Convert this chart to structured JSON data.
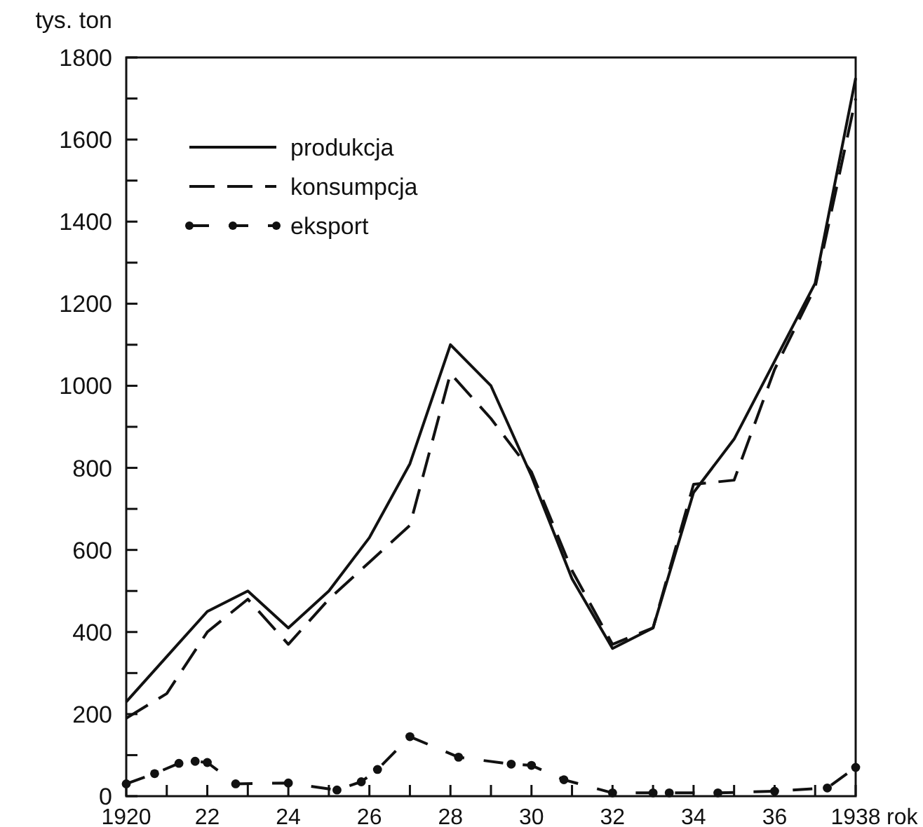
{
  "chart_data": {
    "type": "line",
    "ylabel": "tys. ton",
    "xlabel": "rok",
    "xlim": [
      1920,
      1938
    ],
    "ylim": [
      0,
      1800
    ],
    "xticks": [
      1920,
      {
        "value": 1921,
        "label": null
      },
      {
        "value": 1922,
        "label": "22"
      },
      {
        "value": 1923,
        "label": null
      },
      {
        "value": 1924,
        "label": "24"
      },
      {
        "value": 1925,
        "label": null
      },
      {
        "value": 1926,
        "label": "26"
      },
      {
        "value": 1927,
        "label": null
      },
      {
        "value": 1928,
        "label": "28"
      },
      {
        "value": 1929,
        "label": null
      },
      {
        "value": 1930,
        "label": "30"
      },
      {
        "value": 1931,
        "label": null
      },
      {
        "value": 1932,
        "label": "32"
      },
      {
        "value": 1933,
        "label": null
      },
      {
        "value": 1934,
        "label": "34"
      },
      {
        "value": 1935,
        "label": null
      },
      {
        "value": 1936,
        "label": "36"
      },
      {
        "value": 1937,
        "label": null
      },
      1938
    ],
    "yticks": [
      0,
      {
        "value": 100,
        "label": null
      },
      200,
      {
        "value": 300,
        "label": null
      },
      400,
      {
        "value": 500,
        "label": null
      },
      600,
      {
        "value": 700,
        "label": null
      },
      800,
      {
        "value": 900,
        "label": null
      },
      1000,
      {
        "value": 1100,
        "label": null
      },
      1200,
      {
        "value": 1300,
        "label": null
      },
      1400,
      {
        "value": 1500,
        "label": null
      },
      1600,
      {
        "value": 1700,
        "label": null
      },
      1800
    ],
    "legend": "top left",
    "grid": false,
    "x": [
      1920,
      1921,
      1922,
      1923,
      1924,
      1925,
      1926,
      1927,
      1928,
      1929,
      1930,
      1931,
      1932,
      1933,
      1934,
      1935,
      1936,
      1937,
      1938
    ],
    "series": [
      {
        "name": "produkcja",
        "color": "#111111",
        "line_style": "solid",
        "marker": "none",
        "values": [
          230,
          340,
          450,
          500,
          410,
          500,
          630,
          810,
          1100,
          1000,
          780,
          530,
          360,
          410,
          740,
          870,
          1060,
          1250,
          1750
        ]
      },
      {
        "name": "konsumpcja",
        "color": "#111111",
        "line_style": "dashed",
        "marker": "none",
        "values": [
          190,
          250,
          400,
          480,
          370,
          480,
          570,
          660,
          1030,
          920,
          790,
          550,
          370,
          410,
          760,
          770,
          1040,
          1240,
          1700
        ]
      },
      {
        "name": "eksport",
        "color": "#111111",
        "line_style": "dashdot",
        "marker": "circle",
        "x": [
          1920,
          1920.7,
          1921.3,
          1921.7,
          1922,
          1922.7,
          1924,
          1925.2,
          1925.8,
          1926.2,
          1927,
          1928.2,
          1929.5,
          1930,
          1930.8,
          1932,
          1933,
          1933.4,
          1934.6,
          1936,
          1937.3,
          1938
        ],
        "values": [
          30,
          55,
          80,
          85,
          82,
          30,
          32,
          15,
          35,
          65,
          145,
          95,
          78,
          75,
          40,
          8,
          8,
          8,
          8,
          12,
          20,
          70
        ]
      }
    ]
  }
}
